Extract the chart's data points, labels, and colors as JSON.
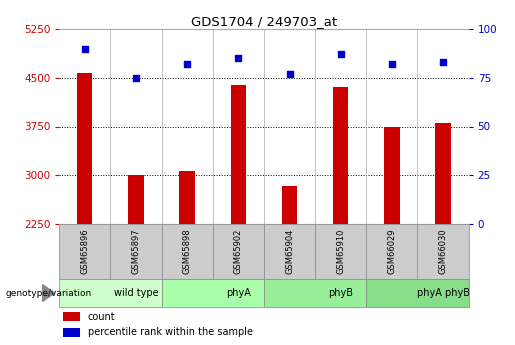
{
  "title": "GDS1704 / 249703_at",
  "samples": [
    "GSM65896",
    "GSM65897",
    "GSM65898",
    "GSM65902",
    "GSM65904",
    "GSM65910",
    "GSM66029",
    "GSM66030"
  ],
  "counts": [
    4570,
    3010,
    3060,
    4390,
    2840,
    4360,
    3750,
    3800
  ],
  "percentiles": [
    90,
    75,
    82,
    85,
    77,
    87,
    82,
    83
  ],
  "ylim_left": [
    2250,
    5250
  ],
  "ylim_right": [
    0,
    100
  ],
  "yticks_left": [
    2250,
    3000,
    3750,
    4500,
    5250
  ],
  "yticks_right": [
    0,
    25,
    50,
    75,
    100
  ],
  "bar_color": "#cc0000",
  "dot_color": "#0000cc",
  "groups": [
    {
      "label": "wild type",
      "start": 0,
      "end": 2,
      "color": "#ccffcc"
    },
    {
      "label": "phyA",
      "start": 2,
      "end": 4,
      "color": "#aaffaa"
    },
    {
      "label": "phyB",
      "start": 4,
      "end": 6,
      "color": "#99ee99"
    },
    {
      "label": "phyA phyB",
      "start": 6,
      "end": 8,
      "color": "#88dd88"
    }
  ],
  "sample_row_color": "#cccccc",
  "left_label": "genotype/variation",
  "legend_count_label": "count",
  "legend_pct_label": "percentile rank within the sample",
  "left_axis_color": "#cc0000",
  "right_axis_color": "#0000cc",
  "grid_color": "black",
  "grid_linestyle": "dotted"
}
